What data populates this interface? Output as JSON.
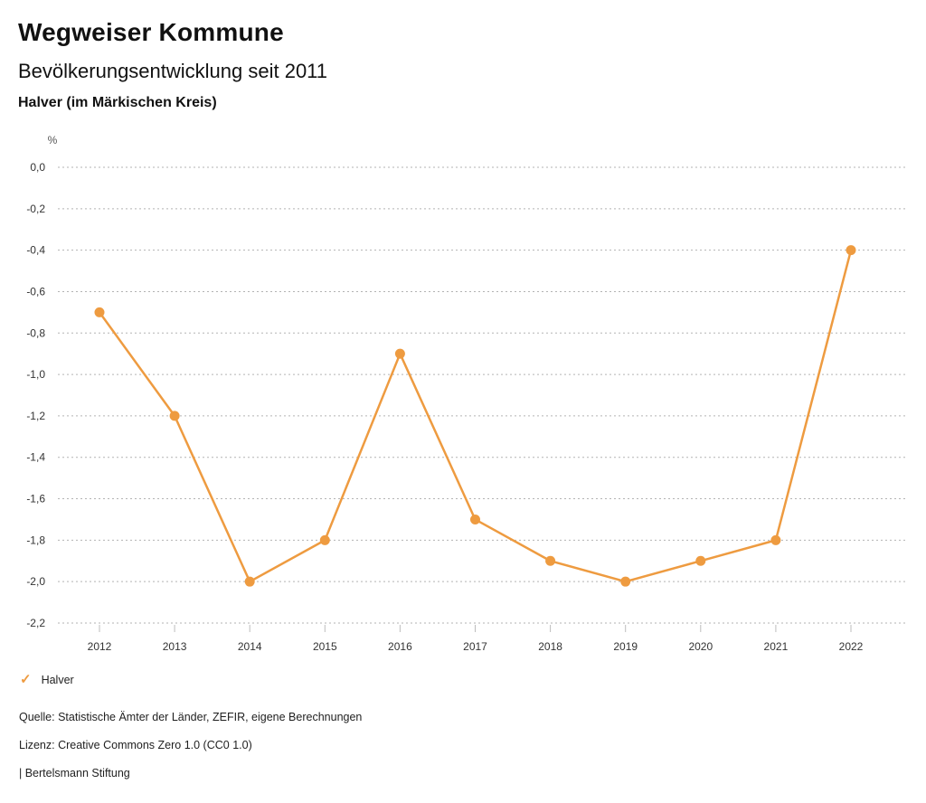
{
  "header": {
    "title": "Wegweiser Kommune",
    "subtitle": "Bevölkerungsentwicklung seit 2011",
    "region": "Halver (im Märkischen Kreis)"
  },
  "chart_data": {
    "type": "line",
    "title": "Bevölkerungsentwicklung seit 2011",
    "xlabel": "",
    "ylabel": "%",
    "unit_label": "%",
    "categories": [
      "2012",
      "2013",
      "2014",
      "2015",
      "2016",
      "2017",
      "2018",
      "2019",
      "2020",
      "2021",
      "2022"
    ],
    "series": [
      {
        "name": "Halver",
        "color": "#EE9B40",
        "values": [
          -0.7,
          -1.2,
          -2.0,
          -1.8,
          -0.9,
          -1.7,
          -1.9,
          -2.0,
          -1.9,
          -1.8,
          -0.4
        ]
      }
    ],
    "ylim": [
      -2.2,
      0.0
    ],
    "ytick_values": [
      0.0,
      -0.2,
      -0.4,
      -0.6,
      -0.8,
      -1.0,
      -1.2,
      -1.4,
      -1.6,
      -1.8,
      -2.0,
      -2.2
    ],
    "ytick_labels": [
      "0,0",
      "-0,2",
      "-0,4",
      "-0,6",
      "-0,8",
      "-1,0",
      "-1,2",
      "-1,4",
      "-1,6",
      "-1,8",
      "-2,0",
      "-2,2"
    ],
    "grid": "horizontal-dotted",
    "legend_position": "bottom-left",
    "gridline_color": "#b3b3b3"
  },
  "legend": {
    "check_icon": "✓",
    "label": "Halver",
    "color": "#EE9B40"
  },
  "footer": {
    "source": "Quelle: Statistische Ämter der Länder, ZEFIR, eigene Berechnungen",
    "license": "Lizenz: Creative Commons Zero 1.0 (CC0 1.0)",
    "publisher": "| Bertelsmann Stiftung"
  }
}
